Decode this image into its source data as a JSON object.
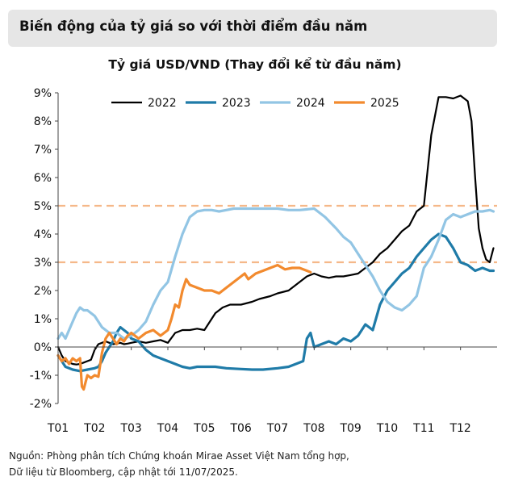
{
  "header": {
    "title": "Biến động của tỷ giá so với thời điểm đầu năm"
  },
  "source": {
    "line1": "Nguồn: Phòng phân tích Chứng khoán Mirae Asset Việt Nam tổng hợp,",
    "line2": "Dữ liệu từ Bloomberg, cập nhật tới 11/07/2025."
  },
  "colors": {
    "s2022": "#000000",
    "s2023": "#1f7ba8",
    "s2024": "#92c5e4",
    "s2025": "#f28a2e",
    "refline": "#f5b889",
    "axis": "#444444"
  },
  "chart_data": {
    "type": "line",
    "title": "Tỷ giá USD/VND (Thay đổi kể từ đầu năm)",
    "xlabel": "",
    "ylabel": "",
    "categories": [
      "T01",
      "T02",
      "T03",
      "T04",
      "T05",
      "T06",
      "T07",
      "T08",
      "T09",
      "T10",
      "T11",
      "T12"
    ],
    "y_ticks": [
      "9%",
      "8%",
      "7%",
      "6%",
      "5%",
      "4%",
      "3%",
      "2%",
      "1%",
      "0%",
      "-1%",
      "-2%"
    ],
    "ylim": [
      -2,
      9
    ],
    "xlim": [
      0,
      12
    ],
    "grid": false,
    "legend": "top",
    "reference_lines": [
      5.0,
      3.0
    ],
    "series": [
      {
        "name": "2022",
        "x": [
          0,
          0.1,
          0.2,
          0.3,
          0.4,
          0.5,
          0.6,
          0.7,
          0.8,
          0.9,
          1,
          1.1,
          1.2,
          1.3,
          1.4,
          1.5,
          1.6,
          1.7,
          1.8,
          1.9,
          2,
          2.2,
          2.4,
          2.6,
          2.8,
          3,
          3.2,
          3.4,
          3.6,
          3.8,
          4,
          4.3,
          4.5,
          4.7,
          5,
          5.3,
          5.5,
          5.8,
          6,
          6.3,
          6.5,
          6.8,
          7,
          7.2,
          7.4,
          7.6,
          7.8,
          8,
          8.2,
          8.4,
          8.6,
          8.8,
          9,
          9.2,
          9.4,
          9.6,
          9.8,
          10,
          10.2,
          10.4,
          10.6,
          10.8,
          11,
          11.1,
          11.2,
          11.3,
          11.4,
          11.5,
          11.6,
          11.7,
          11.8,
          11.9
        ],
        "values": [
          0,
          -0.3,
          -0.5,
          -0.55,
          -0.6,
          -0.62,
          -0.6,
          -0.55,
          -0.5,
          -0.45,
          -0.1,
          0.1,
          0.15,
          0.2,
          0.15,
          0.1,
          0.12,
          0.15,
          0.1,
          0.12,
          0.15,
          0.2,
          0.15,
          0.2,
          0.25,
          0.15,
          0.5,
          0.6,
          0.6,
          0.65,
          0.6,
          1.2,
          1.4,
          1.5,
          1.5,
          1.6,
          1.7,
          1.8,
          1.9,
          2.0,
          2.2,
          2.5,
          2.6,
          2.5,
          2.45,
          2.5,
          2.5,
          2.55,
          2.6,
          2.8,
          3.0,
          3.3,
          3.5,
          3.8,
          4.1,
          4.3,
          4.8,
          5.0,
          7.5,
          8.85,
          8.85,
          8.8,
          8.9,
          8.8,
          8.7,
          8.0,
          6.0,
          4.2,
          3.5,
          3.1,
          3.0,
          3.5
        ]
      },
      {
        "name": "2023",
        "x": [
          0,
          0.2,
          0.4,
          0.6,
          0.8,
          1,
          1.1,
          1.2,
          1.3,
          1.4,
          1.5,
          1.6,
          1.7,
          1.8,
          1.9,
          2,
          2.2,
          2.4,
          2.6,
          2.8,
          3,
          3.2,
          3.4,
          3.6,
          3.8,
          4,
          4.3,
          4.6,
          5,
          5.3,
          5.6,
          6,
          6.3,
          6.5,
          6.7,
          6.8,
          6.9,
          7,
          7.2,
          7.4,
          7.6,
          7.8,
          8,
          8.2,
          8.4,
          8.6,
          8.8,
          9,
          9.2,
          9.4,
          9.6,
          9.8,
          10,
          10.2,
          10.4,
          10.6,
          10.8,
          11,
          11.2,
          11.4,
          11.6,
          11.8,
          11.9
        ],
        "values": [
          -0.3,
          -0.7,
          -0.8,
          -0.85,
          -0.8,
          -0.75,
          -0.7,
          -0.5,
          -0.2,
          0.0,
          0.2,
          0.5,
          0.7,
          0.6,
          0.5,
          0.3,
          0.2,
          -0.1,
          -0.3,
          -0.4,
          -0.5,
          -0.6,
          -0.7,
          -0.75,
          -0.7,
          -0.7,
          -0.7,
          -0.75,
          -0.78,
          -0.8,
          -0.8,
          -0.75,
          -0.7,
          -0.6,
          -0.5,
          0.3,
          0.5,
          0.0,
          0.1,
          0.2,
          0.1,
          0.3,
          0.2,
          0.4,
          0.8,
          0.6,
          1.5,
          2.0,
          2.3,
          2.6,
          2.8,
          3.2,
          3.5,
          3.8,
          4.0,
          3.9,
          3.5,
          3.0,
          2.9,
          2.7,
          2.8,
          2.7,
          2.7
        ]
      },
      {
        "name": "2024",
        "x": [
          0,
          0.1,
          0.2,
          0.3,
          0.4,
          0.5,
          0.6,
          0.7,
          0.8,
          0.9,
          1,
          1.2,
          1.4,
          1.6,
          1.8,
          2,
          2.2,
          2.4,
          2.6,
          2.8,
          3,
          3.2,
          3.4,
          3.6,
          3.8,
          4,
          4.2,
          4.4,
          4.6,
          4.8,
          5,
          5.3,
          5.6,
          6,
          6.3,
          6.6,
          7,
          7.3,
          7.6,
          7.8,
          8,
          8.2,
          8.4,
          8.6,
          8.8,
          9,
          9.2,
          9.4,
          9.6,
          9.8,
          10,
          10.2,
          10.4,
          10.6,
          10.8,
          11,
          11.2,
          11.4,
          11.6,
          11.8,
          11.9
        ],
        "values": [
          0.3,
          0.5,
          0.3,
          0.6,
          0.9,
          1.2,
          1.4,
          1.3,
          1.3,
          1.2,
          1.1,
          0.7,
          0.5,
          0.5,
          0.3,
          0.4,
          0.6,
          0.9,
          1.5,
          2.0,
          2.3,
          3.2,
          4.0,
          4.6,
          4.8,
          4.85,
          4.85,
          4.8,
          4.85,
          4.9,
          4.9,
          4.9,
          4.9,
          4.9,
          4.85,
          4.85,
          4.9,
          4.6,
          4.2,
          3.9,
          3.7,
          3.3,
          2.9,
          2.5,
          2.0,
          1.6,
          1.4,
          1.3,
          1.5,
          1.8,
          2.8,
          3.2,
          3.8,
          4.5,
          4.7,
          4.6,
          4.7,
          4.8,
          4.8,
          4.85,
          4.8
        ]
      },
      {
        "name": "2025",
        "x": [
          0,
          0.1,
          0.2,
          0.3,
          0.4,
          0.5,
          0.6,
          0.65,
          0.7,
          0.8,
          0.9,
          1,
          1.1,
          1.2,
          1.3,
          1.4,
          1.5,
          1.6,
          1.7,
          1.8,
          1.9,
          2,
          2.2,
          2.4,
          2.6,
          2.8,
          3,
          3.1,
          3.2,
          3.3,
          3.4,
          3.5,
          3.6,
          3.8,
          4,
          4.2,
          4.4,
          4.6,
          4.8,
          5,
          5.1,
          5.2,
          5.4,
          5.6,
          5.8,
          6,
          6.2,
          6.4,
          6.6,
          6.8,
          6.9
        ],
        "values": [
          -0.3,
          -0.5,
          -0.4,
          -0.6,
          -0.4,
          -0.5,
          -0.4,
          -1.4,
          -1.5,
          -1.0,
          -1.1,
          -1.0,
          -1.05,
          -0.2,
          0.3,
          0.5,
          0.3,
          0.1,
          0.3,
          0.2,
          0.4,
          0.5,
          0.3,
          0.5,
          0.6,
          0.4,
          0.6,
          1.0,
          1.5,
          1.4,
          2.0,
          2.4,
          2.2,
          2.1,
          2.0,
          2.0,
          1.9,
          2.1,
          2.3,
          2.5,
          2.6,
          2.4,
          2.6,
          2.7,
          2.8,
          2.9,
          2.75,
          2.8,
          2.8,
          2.7,
          2.65
        ]
      }
    ]
  }
}
